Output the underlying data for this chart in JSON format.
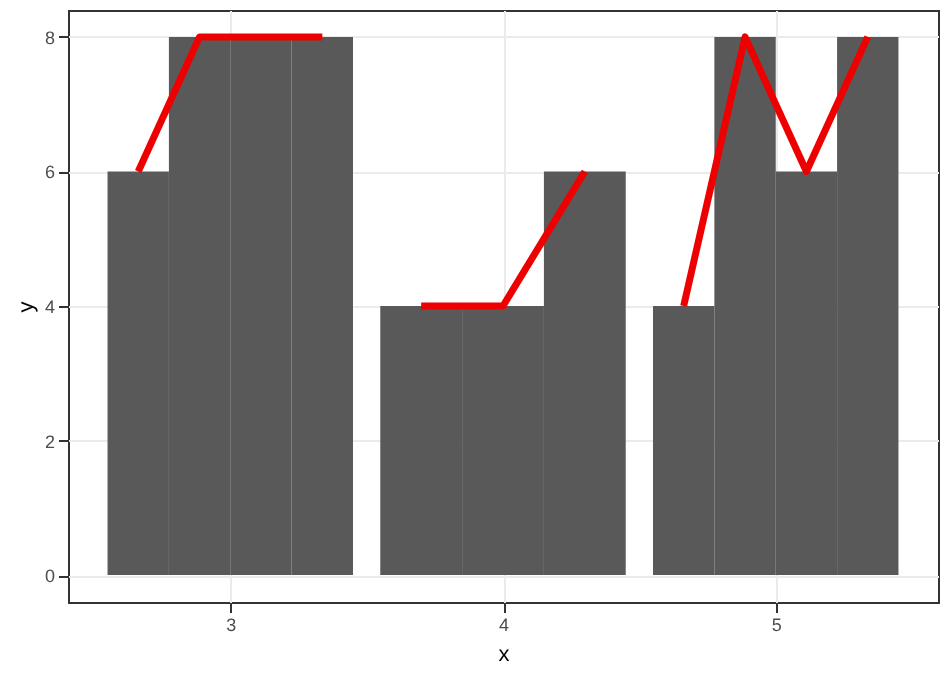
{
  "chart_data": {
    "type": "bar",
    "xlabel": "x",
    "ylabel": "y",
    "xlim": [
      2.405,
      5.595
    ],
    "xticks": [
      3,
      4,
      5
    ],
    "ylim": [
      -0.4,
      8.4
    ],
    "yticks": [
      0,
      2,
      4,
      6,
      8
    ],
    "grid": true,
    "series": [
      {
        "color": "#595959",
        "x": [
          2.6625,
          2.8875,
          3.1125,
          3.3375,
          3.7,
          4.0,
          4.3,
          4.6625,
          4.8875,
          5.1125,
          5.3375
        ],
        "values": [
          6,
          8,
          8,
          8,
          4,
          4,
          6,
          4,
          8,
          6,
          8
        ]
      },
      {
        "type": "line",
        "color": "#ee0000",
        "x": [
          2.6625,
          2.8875,
          3.1125,
          3.3375
        ],
        "values": [
          6,
          8,
          8,
          8
        ]
      },
      {
        "type": "line",
        "color": "#ee0000",
        "x": [
          3.7,
          4.0,
          4.3
        ],
        "values": [
          4,
          4,
          6
        ]
      },
      {
        "type": "line",
        "color": "#ee0000",
        "x": [
          4.6625,
          4.8875,
          5.1125,
          5.3375
        ],
        "values": [
          4,
          8,
          6,
          8
        ]
      }
    ]
  }
}
